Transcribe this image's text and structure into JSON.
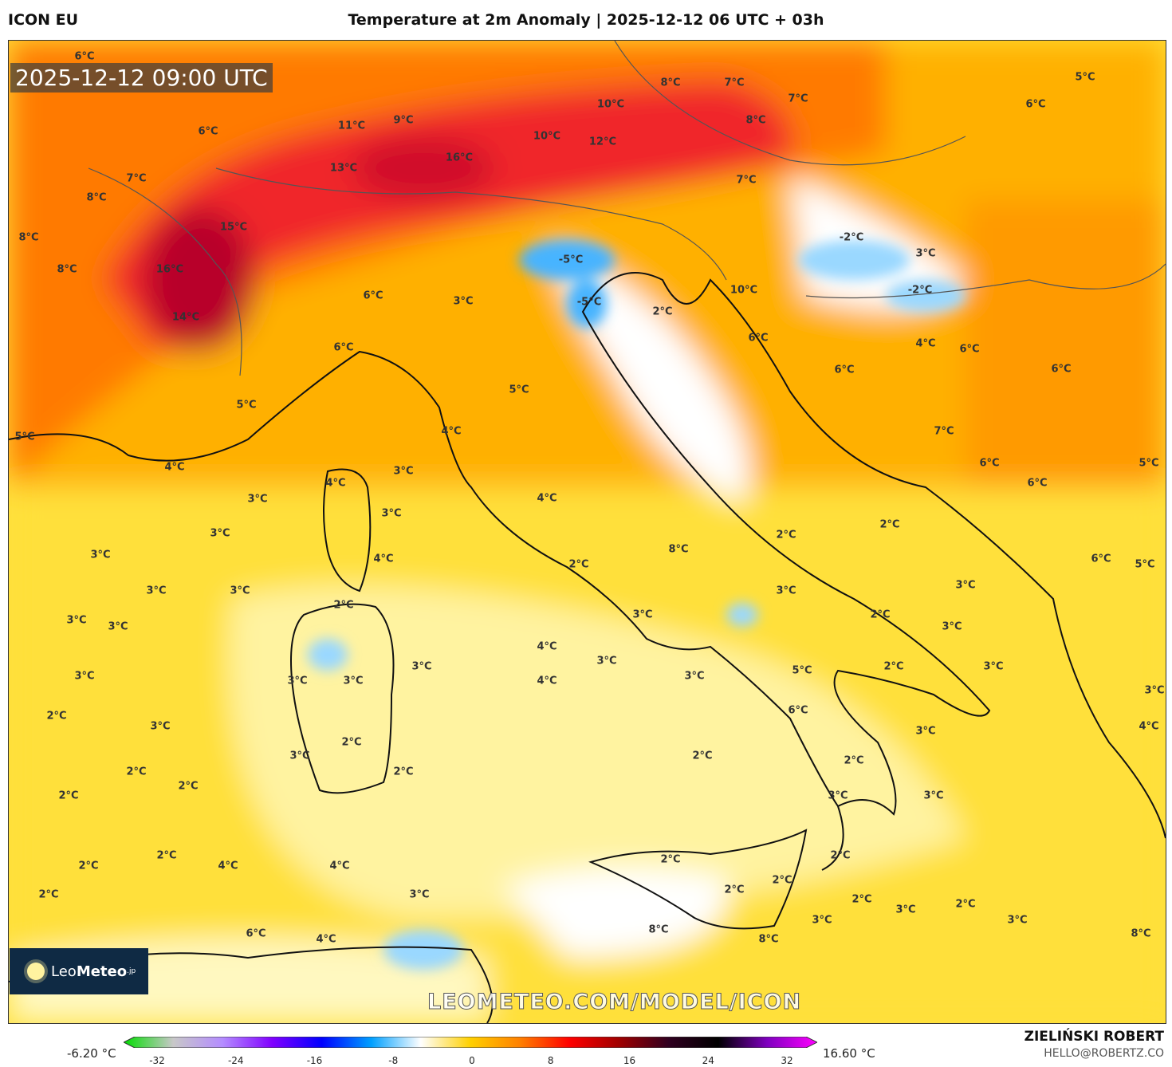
{
  "header": {
    "model": "ICON EU",
    "title": "Temperature at 2m Anomaly | 2025-12-12 06 UTC + 03h"
  },
  "map": {
    "valid_time": "2025-12-12 09:00 UTC",
    "watermark": "LEOMETEO.COM/MODEL/ICON",
    "logo": {
      "text_light": "Leo",
      "text_bold": "Meteo",
      "suffix": ".jp",
      "icon": "sun-icon"
    },
    "labels": [
      "6°C",
      "6°C",
      "11°C",
      "9°C",
      "13°C",
      "16°C",
      "10°C",
      "10°C",
      "12°C",
      "8°C",
      "7°C",
      "7°C",
      "8°C",
      "7°C",
      "15°C",
      "16°C",
      "14°C",
      "8°C",
      "8°C",
      "7°C",
      "8°C",
      "6°C",
      "5°C",
      "4°C",
      "5°C",
      "5°C",
      "-5°C",
      "-5°C",
      "2°C",
      "-2°C",
      "-2°C",
      "3°C",
      "10°C",
      "6°C",
      "6°C",
      "4°C",
      "6°C",
      "6°C",
      "7°C",
      "6°C",
      "6°C",
      "5°C",
      "6°C",
      "3°C",
      "3°C",
      "5°C",
      "6°C",
      "3°C",
      "6°C",
      "5°C",
      "4°C",
      "4°C",
      "4°C",
      "3°C",
      "3°C",
      "4°C",
      "3°C",
      "3°C",
      "3°C",
      "3°C",
      "3°C",
      "2°C",
      "3°C",
      "3°C",
      "3°C",
      "2°C",
      "8°C",
      "2°C",
      "2°C",
      "2°C",
      "2°C",
      "3°C",
      "3°C",
      "3°C",
      "3°C",
      "3°C",
      "3°C",
      "2°C",
      "5°C",
      "3°C",
      "3°C",
      "6°C",
      "2°C",
      "4°C",
      "4°C",
      "3°C",
      "2°C",
      "2°C",
      "3°C",
      "3°C",
      "3°C",
      "3°C",
      "2°C",
      "2°C",
      "2°C",
      "2°C",
      "2°C",
      "2°C",
      "4°C",
      "4°C",
      "3°C",
      "2°C",
      "2°C",
      "2°C",
      "2°C",
      "2°C",
      "2°C",
      "3°C",
      "2°C",
      "3°C",
      "3°C",
      "8°C",
      "8°C",
      "8°C",
      "6°C",
      "4°C",
      "3°C",
      "4°C"
    ],
    "colors": {
      "base_yellow": "#ffe03a",
      "pale_yellow": "#fff3a0",
      "orange": "#ffa500",
      "red": "#f0282a",
      "dark_red": "#a0002a",
      "light_blue": "#c8ecff",
      "blue": "#46b4ff"
    }
  },
  "colorbar": {
    "min_label": "-6.20 °C",
    "max_label": "16.60 °C",
    "ticks": [
      "-32",
      "-24",
      "-16",
      "-8",
      "0",
      "8",
      "16",
      "24",
      "32"
    ],
    "stops": [
      "#00dd00",
      "#c8c8c8",
      "#b48cff",
      "#8000ff",
      "#0000ff",
      "#00a0ff",
      "#ffffff",
      "#ffd000",
      "#ff8000",
      "#ff0000",
      "#a00000",
      "#300020",
      "#000000",
      "#8000c0",
      "#ff00ff"
    ]
  },
  "footer": {
    "author": "ZIELIŃSKI ROBERT",
    "email": "HELLO@ROBERTZ.CO"
  }
}
